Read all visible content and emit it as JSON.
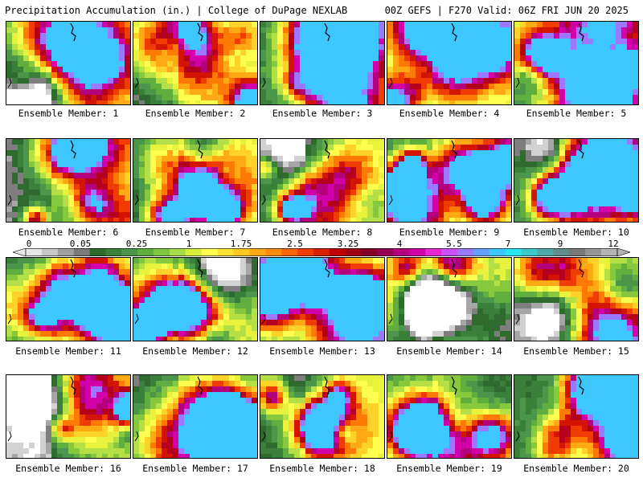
{
  "header": {
    "left": "Precipitation Accumulation (in.) | College of DuPage NEXLAB",
    "right": "00Z GEFS | F270 Valid: 06Z FRI JUN 20 2025"
  },
  "colorbar": {
    "labels": [
      "0",
      "0.05",
      "0.25",
      "1",
      "1.75",
      "2.5",
      "3.25",
      "4",
      "5.5",
      "7",
      "9",
      "12"
    ],
    "colors": [
      "#e6e6e6",
      "#c8c8c8",
      "#a0a0a0",
      "#7a7a7a",
      "#2f6b2f",
      "#3a7f3a",
      "#4c964c",
      "#5fae3e",
      "#7fc63e",
      "#a8dc46",
      "#d8ef3c",
      "#ffff50",
      "#ffe135",
      "#ffc820",
      "#ffaa14",
      "#ff8c0a",
      "#ff6400",
      "#f03c00",
      "#dc1e00",
      "#be0000",
      "#a00014",
      "#820028",
      "#960050",
      "#b4007d",
      "#d200aa",
      "#e628d2",
      "#c850ff",
      "#9b78ff",
      "#64a0ff",
      "#3cc8ff",
      "#28e6f0",
      "#3cc8c8",
      "#50aaaa",
      "#648c8c",
      "#787878",
      "#969696",
      "#b4b4b4"
    ]
  },
  "members": [
    {
      "label": "Ensemble Member: 1"
    },
    {
      "label": "Ensemble Member: 2"
    },
    {
      "label": "Ensemble Member: 3"
    },
    {
      "label": "Ensemble Member: 4"
    },
    {
      "label": "Ensemble Member: 5"
    },
    {
      "label": "Ensemble Member: 6"
    },
    {
      "label": "Ensemble Member: 7"
    },
    {
      "label": "Ensemble Member: 8"
    },
    {
      "label": "Ensemble Member: 9"
    },
    {
      "label": "Ensemble Member: 10"
    },
    {
      "label": "Ensemble Member: 11"
    },
    {
      "label": "Ensemble Member: 12"
    },
    {
      "label": "Ensemble Member: 13"
    },
    {
      "label": "Ensemble Member: 14"
    },
    {
      "label": "Ensemble Member: 15"
    },
    {
      "label": "Ensemble Member: 16"
    },
    {
      "label": "Ensemble Member: 17"
    },
    {
      "label": "Ensemble Member: 18"
    },
    {
      "label": "Ensemble Member: 19"
    },
    {
      "label": "Ensemble Member: 20"
    }
  ]
}
